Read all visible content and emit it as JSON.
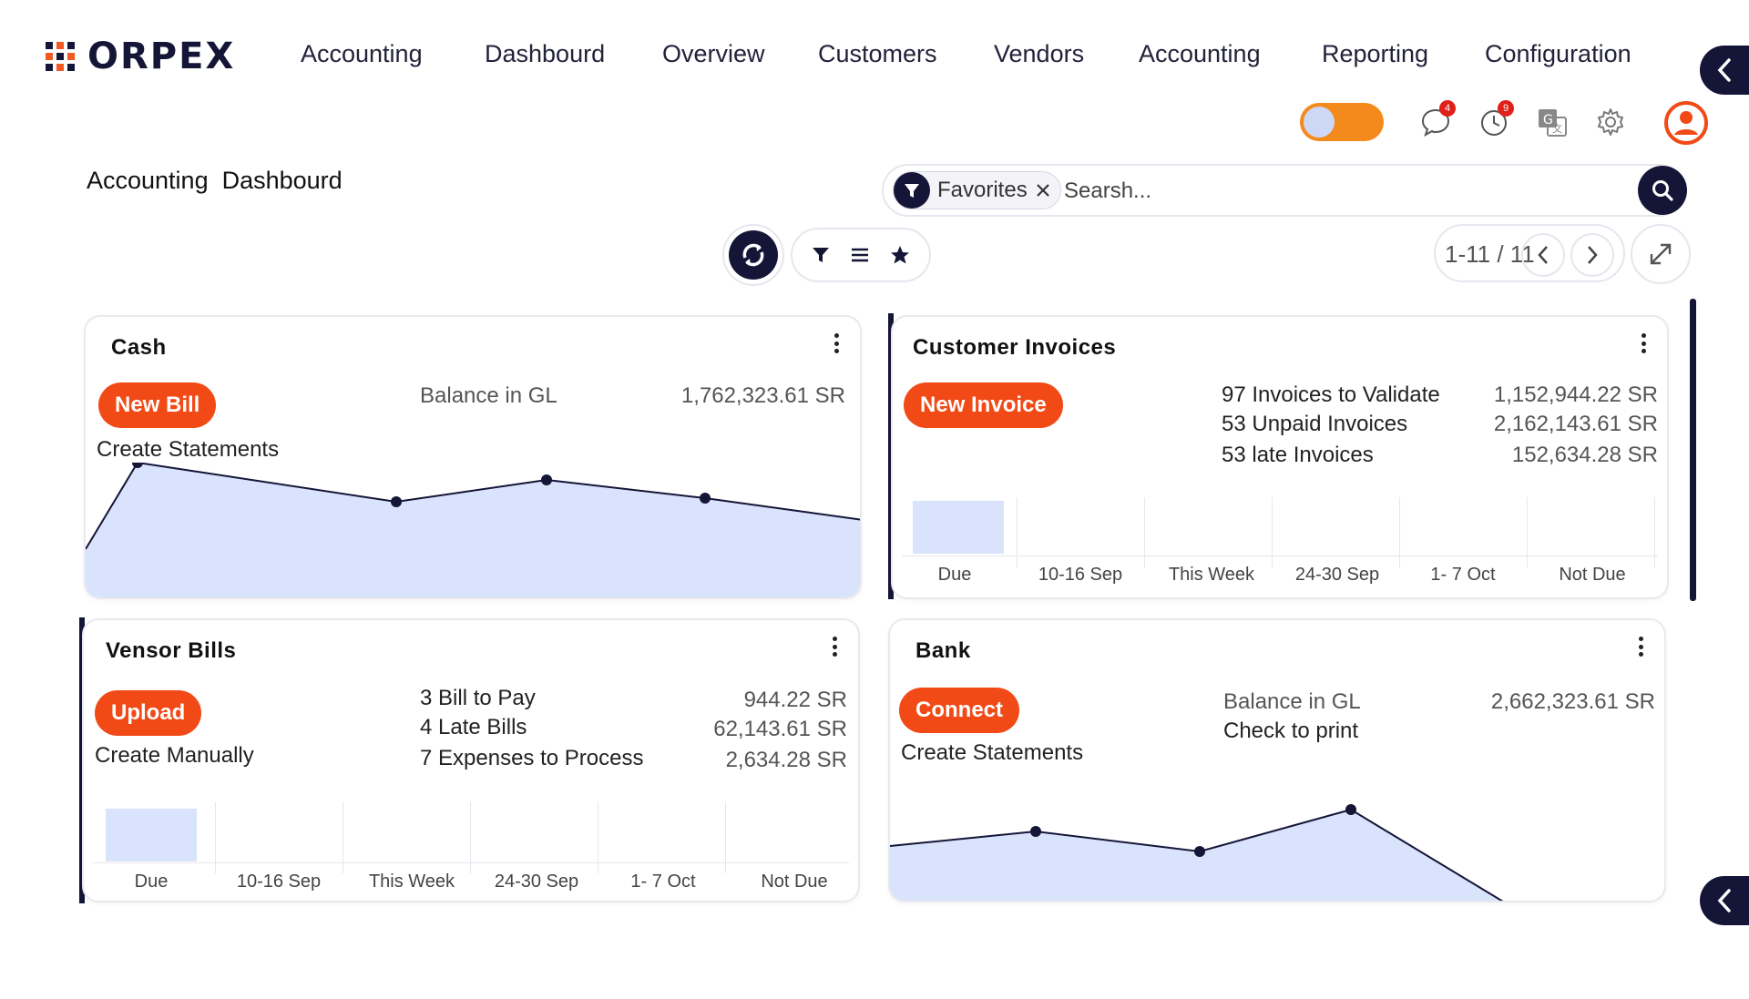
{
  "brand": {
    "name": "ORPEX"
  },
  "nav": {
    "items": [
      "Accounting",
      "Dashbourd",
      "Overview",
      "Customers",
      "Vendors",
      "Accounting",
      "Reporting",
      "Configuration"
    ]
  },
  "header": {
    "chat_badge": "4",
    "activity_badge": "9",
    "colors": {
      "accent": "#151538",
      "orange": "#f14a17",
      "toggle": "#f48a1c"
    }
  },
  "page": {
    "title": "Accounting  Dashbourd"
  },
  "search": {
    "chip": "Favorites",
    "placeholder": "Searsh..."
  },
  "pager": {
    "label": "1-11 / 11"
  },
  "cash": {
    "title": "Cash",
    "button": "New Bill",
    "link": "Create Statements",
    "label": "Balance in GL",
    "value": "1,762,323.61 SR"
  },
  "invoices": {
    "title": "Customer Invoices",
    "button": "New Invoice",
    "rows": [
      {
        "label": "97 Invoices to Validate",
        "value": "1,152,944.22 SR"
      },
      {
        "label": "53 Unpaid Invoices",
        "value": "2,162,143.61 SR"
      },
      {
        "label": "53 late Invoices",
        "value": "152,634.28 SR"
      }
    ],
    "buckets": [
      "Due",
      "10-16 Sep",
      "This Week",
      "24-30 Sep",
      "1- 7 Oct",
      "Not Due"
    ]
  },
  "bills": {
    "title": "Vensor Bills",
    "button": "Upload",
    "link": "Create  Manually",
    "rows": [
      {
        "label": "3 Bill to Pay",
        "value": "944.22 SR"
      },
      {
        "label": "4 Late Bills",
        "value": "62,143.61 SR"
      },
      {
        "label": "7 Expenses to Process",
        "value": "2,634.28 SR"
      }
    ],
    "buckets": [
      "Due",
      "10-16 Sep",
      "This Week",
      "24-30 Sep",
      "1- 7 Oct",
      "Not Due"
    ]
  },
  "bank": {
    "title": "Bank",
    "button": "Connect",
    "link": "Create Statements",
    "label1": "Balance in GL",
    "label2": "Check to print",
    "value": "2,662,323.61 SR"
  }
}
